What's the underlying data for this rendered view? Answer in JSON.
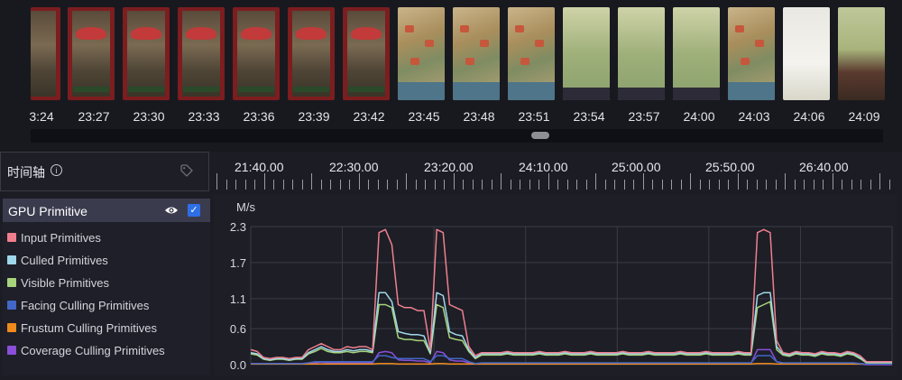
{
  "filmstrip": {
    "frames": [
      "red",
      "red",
      "red",
      "red",
      "red",
      "red",
      "city",
      "city",
      "city",
      "field",
      "field",
      "field",
      "city",
      "white",
      "menu"
    ],
    "timestamps": [
      "3:24",
      "23:27",
      "23:30",
      "23:33",
      "23:36",
      "23:39",
      "23:42",
      "23:45",
      "23:48",
      "23:51",
      "23:54",
      "23:57",
      "24:00",
      "24:03",
      "24:06",
      "24:09"
    ]
  },
  "timeline": {
    "title": "时间轴",
    "info_icon": "info-icon",
    "tag_icon": "tag-icon",
    "labels": [
      "21:40.00",
      "22:30.00",
      "23:20.00",
      "24:10.00",
      "25:00.00",
      "25:50.00",
      "26:40.00"
    ]
  },
  "panel": {
    "title": "GPU Primitive",
    "visible_icon": "eye-icon",
    "checked": true,
    "legend": [
      {
        "label": "Input Primitives",
        "color": "#f07f8e"
      },
      {
        "label": "Culled Primitives",
        "color": "#9fd8ea"
      },
      {
        "label": "Visible Primitives",
        "color": "#a7d47c"
      },
      {
        "label": "Facing Culling Primitives",
        "color": "#4267c8"
      },
      {
        "label": "Frustum Culling Primitives",
        "color": "#f08a1c"
      },
      {
        "label": "Coverage Culling Primitives",
        "color": "#8a4fd8"
      }
    ]
  },
  "chart_data": {
    "type": "line",
    "ylabel": "M/s",
    "yticks": [
      "2.3",
      "1.7",
      "1.1",
      "0.6",
      "0.0"
    ],
    "ylim": [
      0,
      2.3
    ],
    "x": [
      0,
      1,
      2,
      3,
      4,
      5,
      6,
      7,
      8,
      9,
      10,
      11,
      12,
      13,
      14,
      15,
      16,
      17,
      18,
      19,
      20,
      21,
      22,
      23,
      24,
      25,
      26,
      27,
      28,
      29,
      30,
      31,
      32,
      33,
      34,
      35,
      36,
      37,
      38,
      39,
      40,
      41,
      42,
      43,
      44,
      45,
      46,
      47,
      48,
      49,
      50,
      51,
      52,
      53,
      54,
      55,
      56,
      57,
      58,
      59,
      60,
      61,
      62,
      63,
      64,
      65,
      66,
      67,
      68,
      69,
      70,
      71,
      72,
      73,
      74,
      75,
      76,
      77,
      78,
      79,
      80,
      81,
      82,
      83,
      84,
      85,
      86,
      87,
      88,
      89,
      90,
      91,
      92,
      93,
      94,
      95,
      96,
      97,
      98,
      99,
      100
    ],
    "series": [
      {
        "name": "Input Primitives",
        "values": [
          0.25,
          0.22,
          0.12,
          0.1,
          0.12,
          0.12,
          0.1,
          0.12,
          0.12,
          0.25,
          0.3,
          0.35,
          0.3,
          0.25,
          0.25,
          0.3,
          0.28,
          0.3,
          0.3,
          0.25,
          2.2,
          2.25,
          2.0,
          1.0,
          0.95,
          0.95,
          0.9,
          0.9,
          0.25,
          2.25,
          2.2,
          1.0,
          0.95,
          0.9,
          0.3,
          0.15,
          0.2,
          0.2,
          0.2,
          0.2,
          0.22,
          0.2,
          0.2,
          0.2,
          0.2,
          0.22,
          0.2,
          0.2,
          0.2,
          0.22,
          0.2,
          0.2,
          0.2,
          0.22,
          0.2,
          0.2,
          0.2,
          0.2,
          0.22,
          0.2,
          0.2,
          0.2,
          0.22,
          0.2,
          0.2,
          0.2,
          0.2,
          0.22,
          0.2,
          0.2,
          0.2,
          0.22,
          0.2,
          0.2,
          0.2,
          0.2,
          0.22,
          0.2,
          0.2,
          2.2,
          2.25,
          2.2,
          0.4,
          0.2,
          0.18,
          0.22,
          0.2,
          0.2,
          0.18,
          0.22,
          0.2,
          0.2,
          0.18,
          0.22,
          0.2,
          0.15,
          0.05,
          0.05,
          0.05,
          0.05,
          0.05
        ]
      },
      {
        "name": "Culled Primitives",
        "values": [
          0.2,
          0.18,
          0.1,
          0.08,
          0.1,
          0.1,
          0.08,
          0.1,
          0.1,
          0.2,
          0.25,
          0.3,
          0.25,
          0.22,
          0.22,
          0.25,
          0.23,
          0.25,
          0.25,
          0.22,
          1.2,
          1.2,
          1.05,
          0.55,
          0.52,
          0.5,
          0.5,
          0.48,
          0.2,
          1.2,
          1.15,
          0.55,
          0.5,
          0.48,
          0.25,
          0.12,
          0.18,
          0.18,
          0.18,
          0.18,
          0.2,
          0.18,
          0.18,
          0.18,
          0.18,
          0.2,
          0.18,
          0.18,
          0.18,
          0.2,
          0.18,
          0.18,
          0.18,
          0.2,
          0.18,
          0.18,
          0.18,
          0.18,
          0.2,
          0.18,
          0.18,
          0.18,
          0.2,
          0.18,
          0.18,
          0.18,
          0.18,
          0.2,
          0.18,
          0.18,
          0.18,
          0.2,
          0.18,
          0.18,
          0.18,
          0.18,
          0.2,
          0.18,
          0.18,
          1.15,
          1.2,
          1.2,
          0.3,
          0.18,
          0.16,
          0.2,
          0.18,
          0.18,
          0.16,
          0.2,
          0.18,
          0.18,
          0.16,
          0.2,
          0.18,
          0.12,
          0.04,
          0.04,
          0.04,
          0.04,
          0.04
        ]
      },
      {
        "name": "Visible Primitives",
        "values": [
          0.18,
          0.16,
          0.09,
          0.07,
          0.09,
          0.09,
          0.07,
          0.09,
          0.09,
          0.18,
          0.22,
          0.27,
          0.22,
          0.2,
          0.2,
          0.22,
          0.2,
          0.22,
          0.22,
          0.2,
          1.0,
          1.0,
          0.95,
          0.45,
          0.42,
          0.42,
          0.4,
          0.4,
          0.18,
          1.0,
          0.95,
          0.45,
          0.42,
          0.4,
          0.22,
          0.1,
          0.16,
          0.16,
          0.16,
          0.16,
          0.18,
          0.16,
          0.16,
          0.16,
          0.16,
          0.18,
          0.16,
          0.16,
          0.16,
          0.18,
          0.16,
          0.16,
          0.16,
          0.18,
          0.16,
          0.16,
          0.16,
          0.16,
          0.18,
          0.16,
          0.16,
          0.16,
          0.18,
          0.16,
          0.16,
          0.16,
          0.16,
          0.18,
          0.16,
          0.16,
          0.16,
          0.18,
          0.16,
          0.16,
          0.16,
          0.16,
          0.18,
          0.16,
          0.16,
          0.95,
          1.0,
          1.05,
          0.25,
          0.16,
          0.14,
          0.18,
          0.16,
          0.16,
          0.14,
          0.18,
          0.16,
          0.16,
          0.14,
          0.18,
          0.16,
          0.1,
          0.03,
          0.03,
          0.03,
          0.03,
          0.03
        ]
      },
      {
        "name": "Facing Culling Primitives",
        "values": [
          0.02,
          0.02,
          0.02,
          0.02,
          0.02,
          0.02,
          0.02,
          0.02,
          0.02,
          0.03,
          0.05,
          0.05,
          0.05,
          0.05,
          0.05,
          0.05,
          0.05,
          0.05,
          0.05,
          0.05,
          0.15,
          0.15,
          0.12,
          0.1,
          0.1,
          0.1,
          0.1,
          0.1,
          0.05,
          0.15,
          0.15,
          0.1,
          0.1,
          0.1,
          0.05,
          0.02,
          0.03,
          0.03,
          0.03,
          0.03,
          0.03,
          0.03,
          0.03,
          0.03,
          0.03,
          0.03,
          0.03,
          0.03,
          0.03,
          0.03,
          0.03,
          0.03,
          0.03,
          0.03,
          0.03,
          0.03,
          0.03,
          0.03,
          0.03,
          0.03,
          0.03,
          0.03,
          0.03,
          0.03,
          0.03,
          0.03,
          0.03,
          0.03,
          0.03,
          0.03,
          0.03,
          0.03,
          0.03,
          0.03,
          0.03,
          0.03,
          0.03,
          0.03,
          0.03,
          0.15,
          0.15,
          0.15,
          0.05,
          0.03,
          0.03,
          0.03,
          0.03,
          0.03,
          0.03,
          0.03,
          0.03,
          0.03,
          0.03,
          0.03,
          0.03,
          0.02,
          0.01,
          0.01,
          0.01,
          0.01,
          0.01
        ]
      },
      {
        "name": "Frustum Culling Primitives",
        "values": [
          0.01,
          0.01,
          0.01,
          0.01,
          0.01,
          0.01,
          0.01,
          0.01,
          0.01,
          0.01,
          0.01,
          0.01,
          0.01,
          0.01,
          0.01,
          0.01,
          0.01,
          0.01,
          0.01,
          0.01,
          0.02,
          0.02,
          0.02,
          0.01,
          0.01,
          0.01,
          0.01,
          0.01,
          0.01,
          0.02,
          0.02,
          0.01,
          0.01,
          0.01,
          0.01,
          0.01,
          0.01,
          0.01,
          0.01,
          0.01,
          0.01,
          0.01,
          0.01,
          0.01,
          0.01,
          0.01,
          0.01,
          0.01,
          0.01,
          0.01,
          0.01,
          0.01,
          0.01,
          0.01,
          0.01,
          0.01,
          0.01,
          0.01,
          0.01,
          0.01,
          0.01,
          0.01,
          0.01,
          0.01,
          0.01,
          0.01,
          0.01,
          0.01,
          0.01,
          0.01,
          0.01,
          0.01,
          0.01,
          0.01,
          0.01,
          0.01,
          0.01,
          0.01,
          0.01,
          0.02,
          0.02,
          0.02,
          0.01,
          0.01,
          0.01,
          0.01,
          0.01,
          0.01,
          0.01,
          0.01,
          0.01,
          0.01,
          0.01,
          0.01,
          0.01,
          0.01,
          0.01,
          0.01,
          0.01,
          0.01,
          0.01
        ]
      },
      {
        "name": "Coverage Culling Primitives",
        "values": [
          0.02,
          0.02,
          0.01,
          0.01,
          0.01,
          0.01,
          0.01,
          0.01,
          0.01,
          0.02,
          0.03,
          0.04,
          0.03,
          0.03,
          0.03,
          0.03,
          0.03,
          0.03,
          0.03,
          0.03,
          0.2,
          0.22,
          0.2,
          0.08,
          0.07,
          0.07,
          0.06,
          0.06,
          0.03,
          0.22,
          0.2,
          0.08,
          0.06,
          0.06,
          0.03,
          0.02,
          0.02,
          0.02,
          0.02,
          0.02,
          0.02,
          0.02,
          0.02,
          0.02,
          0.02,
          0.02,
          0.02,
          0.02,
          0.02,
          0.02,
          0.02,
          0.02,
          0.02,
          0.02,
          0.02,
          0.02,
          0.02,
          0.02,
          0.02,
          0.02,
          0.02,
          0.02,
          0.02,
          0.02,
          0.02,
          0.02,
          0.02,
          0.02,
          0.02,
          0.02,
          0.02,
          0.02,
          0.02,
          0.02,
          0.02,
          0.02,
          0.02,
          0.02,
          0.02,
          0.25,
          0.25,
          0.25,
          0.05,
          0.02,
          0.02,
          0.02,
          0.02,
          0.02,
          0.02,
          0.02,
          0.02,
          0.02,
          0.02,
          0.02,
          0.02,
          0.01,
          0.0,
          0.0,
          0.0,
          0.0,
          0.0
        ]
      }
    ]
  }
}
